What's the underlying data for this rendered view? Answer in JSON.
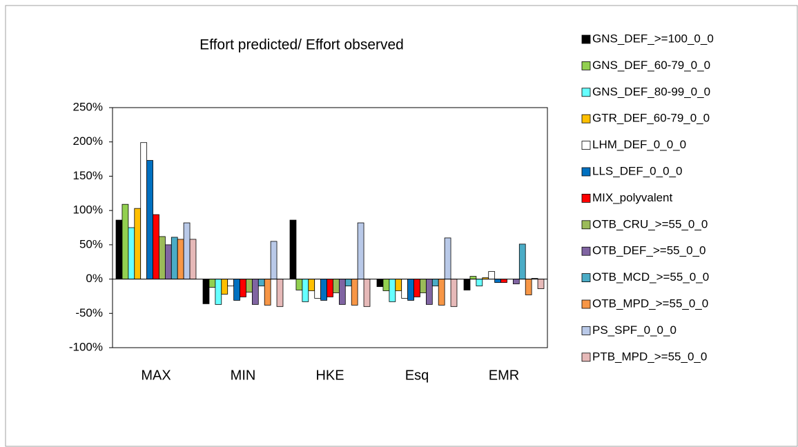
{
  "chart_data": {
    "type": "bar",
    "title": "Effort predicted/ Effort observed",
    "categories": [
      "MAX",
      "MIN",
      "HKE",
      "Esq",
      "EMR"
    ],
    "ylim": [
      -100,
      250
    ],
    "yticks": [
      {
        "value": -100,
        "label": "-100%"
      },
      {
        "value": -50,
        "label": "-50%"
      },
      {
        "value": 0,
        "label": "0%"
      },
      {
        "value": 50,
        "label": "50%"
      },
      {
        "value": 100,
        "label": "100%"
      },
      {
        "value": 150,
        "label": "150%"
      },
      {
        "value": 200,
        "label": "200%"
      },
      {
        "value": 250,
        "label": "250%"
      }
    ],
    "grid": false,
    "legend": "right",
    "series": [
      {
        "name": "GNS_DEF_>=100_0_0",
        "color": "#000000",
        "values": [
          86,
          -36,
          86,
          -11,
          -16
        ]
      },
      {
        "name": "GNS_DEF_60-79_0_0",
        "color": "#92d050",
        "values": [
          109,
          -12,
          -16,
          -17,
          4
        ]
      },
      {
        "name": "GNS_DEF_80-99_0_0",
        "color": "#66ffff",
        "values": [
          75,
          -37,
          -33,
          -33,
          -10
        ]
      },
      {
        "name": "GTR_DEF_60-79_0_0",
        "color": "#ffc000",
        "values": [
          103,
          -22,
          -17,
          -17,
          2
        ]
      },
      {
        "name": "LHM_DEF_0_0_0",
        "color": "#ffffff",
        "values": [
          199,
          -10,
          -28,
          -28,
          11
        ]
      },
      {
        "name": "LLS_DEF_0_0_0",
        "color": "#0070c0",
        "values": [
          173,
          -31,
          -31,
          -31,
          -5
        ]
      },
      {
        "name": "MIX_polyvalent",
        "color": "#ff0000",
        "values": [
          94,
          -26,
          -26,
          -26,
          -5
        ]
      },
      {
        "name": "OTB_CRU_>=55_0_0",
        "color": "#9bbb59",
        "values": [
          62,
          -19,
          -20,
          -20,
          0
        ]
      },
      {
        "name": "OTB_DEF_>=55_0_0",
        "color": "#8064a2",
        "values": [
          50,
          -37,
          -37,
          -37,
          -7
        ]
      },
      {
        "name": "OTB_MCD_>=55_0_0",
        "color": "#4bacc6",
        "values": [
          61,
          -10,
          -10,
          -10,
          51
        ]
      },
      {
        "name": "OTB_MPD_>=55_0_0",
        "color": "#f79646",
        "values": [
          58,
          -38,
          -38,
          -38,
          -23
        ]
      },
      {
        "name": "PS_SPF_0_0_0",
        "color": "#b9c9e8",
        "values": [
          82,
          55,
          82,
          60,
          1
        ]
      },
      {
        "name": "PTB_MPD_>=55_0_0",
        "color": "#e6b9b8",
        "values": [
          58,
          -40,
          -40,
          -40,
          -14
        ]
      }
    ]
  }
}
